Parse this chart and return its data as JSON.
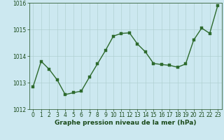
{
  "x": [
    0,
    1,
    2,
    3,
    4,
    5,
    6,
    7,
    8,
    9,
    10,
    11,
    12,
    13,
    14,
    15,
    16,
    17,
    18,
    19,
    20,
    21,
    22,
    23
  ],
  "y": [
    1012.85,
    1013.8,
    1013.5,
    1013.1,
    1012.55,
    1012.62,
    1012.68,
    1013.2,
    1013.7,
    1014.2,
    1014.75,
    1014.85,
    1014.87,
    1014.45,
    1014.15,
    1013.72,
    1013.68,
    1013.65,
    1013.58,
    1013.7,
    1014.6,
    1015.05,
    1014.85,
    1015.9
  ],
  "line_color": "#2d6a2d",
  "marker_color": "#2d6a2d",
  "bg_color": "#cce8f0",
  "grid_color": "#aacccc",
  "ylim": [
    1012.0,
    1016.0
  ],
  "xlim": [
    -0.5,
    23.5
  ],
  "yticks": [
    1012,
    1013,
    1014,
    1015,
    1016
  ],
  "xticks": [
    0,
    1,
    2,
    3,
    4,
    5,
    6,
    7,
    8,
    9,
    10,
    11,
    12,
    13,
    14,
    15,
    16,
    17,
    18,
    19,
    20,
    21,
    22,
    23
  ],
  "xlabel": "Graphe pression niveau de la mer (hPa)",
  "xlabel_fontsize": 6.5,
  "tick_fontsize": 5.5,
  "axis_label_color": "#1a4a1a",
  "tick_label_color": "#1a4a1a",
  "marker_size": 2.5,
  "line_width": 1.0
}
